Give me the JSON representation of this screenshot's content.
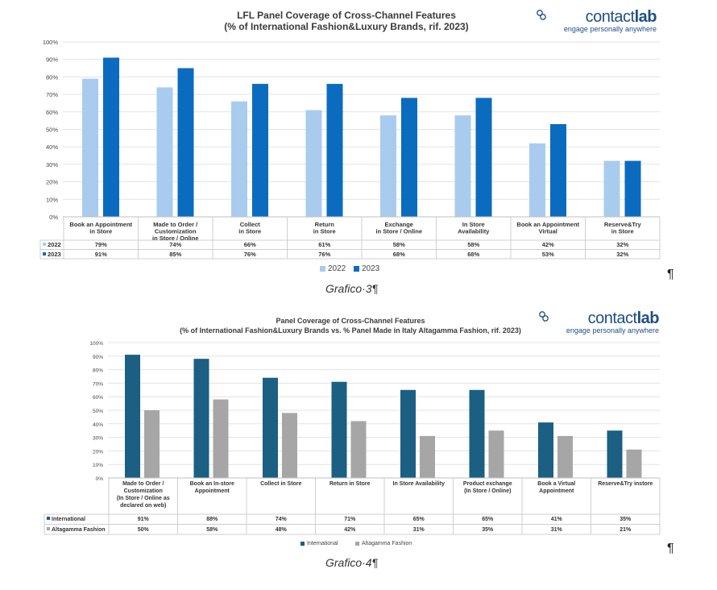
{
  "document": {
    "caption1": "Grafico·3¶",
    "caption2": "Grafico·4¶",
    "pilcrow": "¶"
  },
  "logo": {
    "word_a": "contact",
    "word_b": "lab",
    "tagline": "engage personally anywhere",
    "color": "#1e4f86"
  },
  "chart_data": [
    {
      "type": "bar",
      "title": "LFL Panel Coverage of Cross-Channel Features",
      "subtitle": "(% of International Fashion&Luxury Brands, rif. 2023)",
      "categories": [
        [
          "Book an Appointment",
          "in Store"
        ],
        [
          "Made to Order /",
          "Customization",
          "in Store / Online"
        ],
        [
          "Collect",
          "in Store"
        ],
        [
          "Return",
          "in Store"
        ],
        [
          "Exchange",
          "in Store / Online"
        ],
        [
          "In Store",
          "Availability"
        ],
        [
          "Book an Appointment",
          "Virtual"
        ],
        [
          "Reserve&Try",
          "in Store"
        ]
      ],
      "series": [
        {
          "name": "2022",
          "color": "#a9ccee",
          "values": [
            79,
            74,
            66,
            61,
            58,
            58,
            42,
            32
          ],
          "labels": [
            "79%",
            "74%",
            "66%",
            "61%",
            "58%",
            "58%",
            "42%",
            "32%"
          ]
        },
        {
          "name": "2023",
          "color": "#0b6bbf",
          "values": [
            91,
            85,
            76,
            76,
            68,
            68,
            53,
            32
          ],
          "labels": [
            "91%",
            "85%",
            "76%",
            "76%",
            "68%",
            "68%",
            "53%",
            "32%"
          ]
        }
      ],
      "ylim": [
        0,
        100
      ],
      "yticks": [
        "0%",
        "10%",
        "20%",
        "30%",
        "40%",
        "50%",
        "60%",
        "70%",
        "80%",
        "90%",
        "100%"
      ],
      "grid": true,
      "legend": "bottom"
    },
    {
      "type": "bar",
      "title": "Panel Coverage of Cross-Channel Features",
      "subtitle": "(% of International Fashion&Luxury Brands vs. % Panel Made in Italy Altagamma Fashion, rif. 2023)",
      "categories": [
        [
          "Made to Order /",
          "Customization",
          "(In Store / Online as",
          "declared on web)"
        ],
        [
          "Book an In-store",
          "Appointment"
        ],
        [
          "Collect in Store"
        ],
        [
          "Return in Store"
        ],
        [
          "In Store Availability"
        ],
        [
          "Product exchange",
          "(In Store / Online)"
        ],
        [
          "Book a Virtual",
          "Appointment"
        ],
        [
          "Reserve&Try instore"
        ]
      ],
      "series": [
        {
          "name": "International",
          "color": "#1b5f83",
          "values": [
            91,
            88,
            74,
            71,
            65,
            65,
            41,
            35
          ],
          "labels": [
            "91%",
            "88%",
            "74%",
            "71%",
            "65%",
            "65%",
            "41%",
            "35%"
          ]
        },
        {
          "name": "Altagamma Fashion",
          "color": "#a6a6a6",
          "values": [
            50,
            58,
            48,
            42,
            31,
            35,
            31,
            21
          ],
          "labels": [
            "50%",
            "58%",
            "48%",
            "42%",
            "31%",
            "35%",
            "31%",
            "21%"
          ]
        }
      ],
      "ylim": [
        0,
        100
      ],
      "yticks": [
        "0%",
        "10%",
        "20%",
        "30%",
        "40%",
        "50%",
        "60%",
        "70%",
        "80%",
        "90%",
        "100%"
      ],
      "grid": true,
      "legend": "bottom"
    }
  ]
}
